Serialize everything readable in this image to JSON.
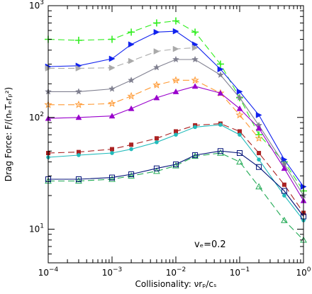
{
  "chart_data": {
    "type": "line",
    "xlabel": "Collisionality: νrₚ/cₛ",
    "ylabel": "Drag Force: F/(nₑTₑrₚ²)",
    "xscale": "log",
    "yscale": "log",
    "xlim": [
      0.0001,
      1
    ],
    "ylim": [
      5,
      1000
    ],
    "x_tick_labels": [
      {
        "value": 0.0001,
        "base": "10",
        "exp": "−4"
      },
      {
        "value": 0.001,
        "base": "10",
        "exp": "−3"
      },
      {
        "value": 0.01,
        "base": "10",
        "exp": "−2"
      },
      {
        "value": 0.1,
        "base": "10",
        "exp": "−1"
      },
      {
        "value": 1,
        "base": "10",
        "exp": "0"
      }
    ],
    "y_tick_labels": [
      {
        "value": 10,
        "base": "10",
        "exp": "1"
      },
      {
        "value": 100,
        "base": "10",
        "exp": "2"
      },
      {
        "value": 1000,
        "base": "10",
        "exp": "3"
      }
    ],
    "annotation": "vₑ=0.2",
    "grid": false,
    "series": [
      {
        "color": "#33ee22",
        "marker": "plus",
        "dash": true,
        "x": [
          0.0001,
          0.0003,
          0.001,
          0.002,
          0.005,
          0.01,
          0.02,
          0.05,
          0.1,
          0.2,
          0.5,
          1.0
        ],
        "y": [
          500,
          490,
          500,
          580,
          700,
          730,
          580,
          300,
          150,
          70,
          40,
          22
        ]
      },
      {
        "color": "#1122ee",
        "marker": "tri-right",
        "dash": false,
        "x": [
          0.0001,
          0.0003,
          0.001,
          0.002,
          0.005,
          0.01,
          0.02,
          0.05,
          0.1,
          0.2,
          0.5,
          1.0
        ],
        "y": [
          285,
          290,
          335,
          450,
          580,
          590,
          450,
          270,
          170,
          105,
          42,
          24
        ]
      },
      {
        "color": "#aaaaaa",
        "marker": "tri-right",
        "dash": true,
        "x": [
          0.0001,
          0.0003,
          0.001,
          0.002,
          0.005,
          0.01,
          0.02
        ],
        "y": [
          275,
          275,
          278,
          320,
          390,
          410,
          420
        ]
      },
      {
        "color": "#808090",
        "marker": "star",
        "dash": false,
        "x": [
          0.0001,
          0.0003,
          0.001,
          0.002,
          0.005,
          0.01,
          0.02,
          0.05,
          0.1,
          0.2,
          0.5,
          1.0
        ],
        "y": [
          170,
          170,
          180,
          215,
          280,
          330,
          330,
          240,
          150,
          85,
          38,
          20
        ]
      },
      {
        "color": "#ff9933",
        "marker": "star-open",
        "dash": true,
        "x": [
          0.0001,
          0.0003,
          0.001,
          0.002,
          0.005,
          0.01,
          0.02,
          0.05,
          0.1,
          0.2
        ],
        "y": [
          130,
          130,
          133,
          155,
          195,
          215,
          215,
          165,
          105,
          65
        ]
      },
      {
        "color": "#9900cc",
        "marker": "tri-up",
        "dash": false,
        "x": [
          0.0001,
          0.0003,
          0.001,
          0.002,
          0.005,
          0.01,
          0.02,
          0.05,
          0.1,
          0.2,
          0.5,
          1.0
        ],
        "y": [
          98,
          100,
          103,
          120,
          150,
          170,
          190,
          165,
          120,
          80,
          35,
          18
        ]
      },
      {
        "color": "#aa2222",
        "marker": "square",
        "dash": true,
        "x": [
          0.0001,
          0.0003,
          0.001,
          0.002,
          0.005,
          0.01,
          0.02,
          0.05,
          0.1,
          0.2,
          0.5,
          1.0
        ],
        "y": [
          48,
          49,
          52,
          57,
          65,
          75,
          85,
          88,
          75,
          48,
          25,
          14
        ]
      },
      {
        "color": "#22bbbb",
        "marker": "circle",
        "dash": false,
        "x": [
          0.0001,
          0.0003,
          0.001,
          0.002,
          0.005,
          0.01,
          0.02,
          0.05,
          0.1,
          0.2,
          0.5,
          1.0
        ],
        "y": [
          44,
          46,
          48,
          52,
          60,
          70,
          82,
          86,
          70,
          42,
          20,
          12
        ]
      },
      {
        "color": "#22aa55",
        "marker": "tri-up-open",
        "dash": true,
        "x": [
          0.0001,
          0.0003,
          0.001,
          0.002,
          0.005,
          0.01,
          0.02,
          0.05,
          0.1,
          0.2,
          0.5,
          1.0
        ],
        "y": [
          27,
          27,
          28,
          30,
          33,
          37,
          45,
          48,
          40,
          24,
          12,
          8
        ]
      },
      {
        "color": "#001177",
        "marker": "square-open",
        "dash": false,
        "x": [
          0.0001,
          0.0003,
          0.001,
          0.002,
          0.005,
          0.01,
          0.02,
          0.05,
          0.1,
          0.2,
          0.5,
          1.0
        ],
        "y": [
          28,
          28,
          29,
          31,
          35,
          38,
          46,
          50,
          48,
          36,
          22,
          13
        ]
      }
    ]
  }
}
